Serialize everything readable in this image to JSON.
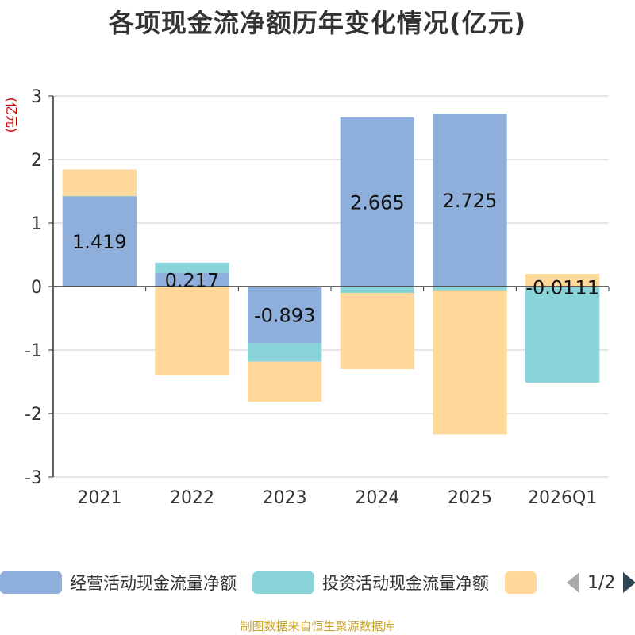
{
  "chart_data": {
    "type": "bar",
    "stacked": true,
    "title": "各项现金流净额历年变化情况(亿元)",
    "ylabel": "(亿元)",
    "xlabel": "",
    "ylim": [
      -3,
      3
    ],
    "yticks": [
      3,
      2,
      1,
      0,
      -1,
      -2,
      -3
    ],
    "categories": [
      "2021",
      "2022",
      "2023",
      "2024",
      "2025",
      "2026Q1"
    ],
    "series": [
      {
        "name": "经营活动现金流量净额",
        "color": "#8eaedb",
        "values": [
          1.419,
          0.217,
          -0.893,
          2.665,
          2.725,
          -0.0111
        ],
        "labels": [
          "1.419",
          "0.217",
          "-0.893",
          "2.665",
          "2.725",
          "-0.0111"
        ]
      },
      {
        "name": "投资活动现金流量净额",
        "color": "#88d4d8",
        "values": [
          0.005,
          0.16,
          -0.29,
          -0.1,
          -0.06,
          -1.5
        ],
        "labels": []
      },
      {
        "name": "",
        "color": "#ffd89a",
        "values": [
          0.42,
          -1.4,
          -0.63,
          -1.2,
          -2.27,
          0.2
        ],
        "labels": []
      }
    ],
    "legend": {
      "position": "bottom",
      "page": "1/2"
    },
    "source": "制图数据来自恒生聚源数据库"
  }
}
